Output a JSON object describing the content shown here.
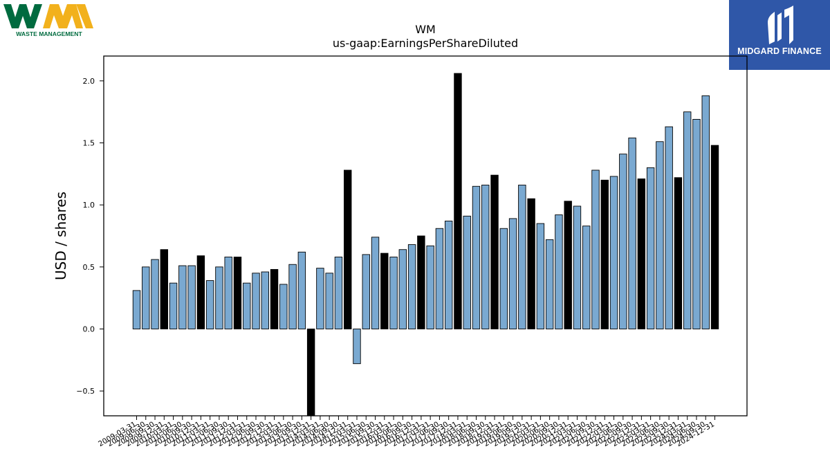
{
  "logos": {
    "left": {
      "letters": "WM",
      "caption": "WASTE MANAGEMENT"
    },
    "right": {
      "name": "MIDGARD FINANCE"
    }
  },
  "colors": {
    "regular": "#7aa9d1",
    "annual": "#000000",
    "edge": "#000000"
  },
  "chart_data": {
    "type": "bar",
    "title": "WM",
    "subtitle": "us-gaap:EarningsPerShareDiluted",
    "ylabel": "USD / shares",
    "xlabel": "",
    "ylim": [
      -0.7,
      2.2
    ],
    "yticks": [
      -0.5,
      0.0,
      0.5,
      1.0,
      1.5,
      2.0
    ],
    "ytick_labels": [
      "−0.5",
      "0.0",
      "0.5",
      "1.0",
      "1.5",
      "2.0"
    ],
    "grid": false,
    "x_tick_labels": [
      "2009-03-31",
      "2009-06-30",
      "2009-09-30",
      "2009-12-31",
      "2010-03-31",
      "2010-06-30",
      "2010-09-30",
      "2010-12-31",
      "2011-03-31",
      "2011-06-30",
      "2011-09-30",
      "2011-12-31",
      "2012-03-31",
      "2012-06-30",
      "2012-09-30",
      "2012-12-31",
      "2013-03-31",
      "2013-06-30",
      "2013-09-30",
      "2013-12-31",
      "2014-03-31",
      "2014-06-30",
      "2014-09-30",
      "2014-12-31",
      "2015-03-31",
      "2015-06-30",
      "2015-09-30",
      "2015-12-31",
      "2016-03-31",
      "2016-06-30",
      "2016-09-30",
      "2016-12-31",
      "2017-03-31",
      "2017-06-30",
      "2017-09-30",
      "2017-12-31",
      "2018-03-31",
      "2018-06-30",
      "2018-09-30",
      "2018-12-31",
      "2019-03-31",
      "2019-06-30",
      "2019-09-30",
      "2019-12-31",
      "2020-03-31",
      "2020-06-30",
      "2020-09-30",
      "2020-12-31",
      "2021-03-31",
      "2021-06-30",
      "2021-09-30",
      "2021-12-31",
      "2022-03-31",
      "2022-06-30",
      "2022-09-30",
      "2022-12-31",
      "2023-03-31",
      "2023-06-30",
      "2023-09-30",
      "2023-12-31",
      "2024-03-31",
      "2024-06-30",
      "2024-09-30",
      "2024-12-31"
    ],
    "values": [
      0.31,
      0.5,
      0.56,
      0.64,
      0.37,
      0.51,
      0.51,
      0.59,
      0.39,
      0.5,
      0.58,
      0.58,
      0.37,
      0.45,
      0.46,
      0.48,
      0.36,
      0.52,
      0.62,
      -0.75,
      0.49,
      0.45,
      0.58,
      1.28,
      -0.28,
      0.6,
      0.74,
      0.61,
      0.58,
      0.64,
      0.68,
      0.75,
      0.67,
      0.81,
      0.87,
      2.06,
      0.91,
      1.15,
      1.16,
      1.24,
      0.81,
      0.89,
      1.16,
      1.05,
      0.85,
      0.72,
      0.92,
      1.03,
      0.99,
      0.83,
      1.28,
      1.2,
      1.23,
      1.41,
      1.54,
      1.21,
      1.3,
      1.51,
      1.63,
      1.22,
      1.75,
      1.69,
      1.88,
      1.48
    ],
    "annual": [
      false,
      false,
      false,
      true,
      false,
      false,
      false,
      true,
      false,
      false,
      false,
      true,
      false,
      false,
      false,
      true,
      false,
      false,
      false,
      true,
      false,
      false,
      false,
      true,
      false,
      false,
      false,
      true,
      false,
      false,
      false,
      true,
      false,
      false,
      false,
      true,
      false,
      false,
      false,
      true,
      false,
      false,
      false,
      true,
      false,
      false,
      false,
      true,
      false,
      false,
      false,
      true,
      false,
      false,
      false,
      true,
      false,
      false,
      false,
      true,
      false,
      false,
      false,
      true
    ]
  }
}
